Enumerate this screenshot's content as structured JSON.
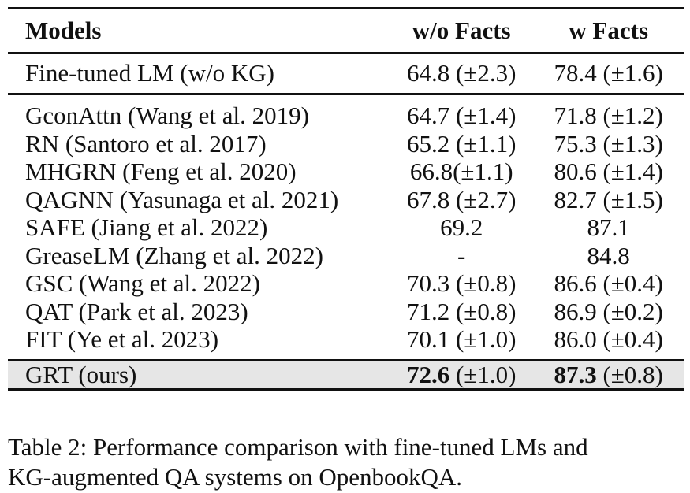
{
  "table": {
    "headers": {
      "models": "Models",
      "wo_facts": "w/o Facts",
      "w_facts": "w Facts"
    },
    "finetuned_row": {
      "model": "Fine-tuned LM (w/o KG)",
      "wo_facts": "64.8 (±2.3)",
      "w_facts": "78.4 (±1.6)"
    },
    "baseline_rows": [
      {
        "model": "GconAttn (Wang et al. 2019)",
        "wo_facts": "64.7 (±1.4)",
        "w_facts": "71.8 (±1.2)"
      },
      {
        "model": "RN (Santoro et al. 2017)",
        "wo_facts": "65.2 (±1.1)",
        "w_facts": "75.3 (±1.3)"
      },
      {
        "model": "MHGRN (Feng et al. 2020)",
        "wo_facts": "66.8(±1.1)",
        "w_facts": "80.6 (±1.4)"
      },
      {
        "model": "QAGNN (Yasunaga et al. 2021)",
        "wo_facts": "67.8 (±2.7)",
        "w_facts": "82.7 (±1.5)"
      },
      {
        "model": "SAFE (Jiang et al. 2022)",
        "wo_facts": "69.2",
        "w_facts": "87.1"
      },
      {
        "model": "GreaseLM (Zhang et al. 2022)",
        "wo_facts": "-",
        "w_facts": "84.8"
      },
      {
        "model": "GSC (Wang et al. 2022)",
        "wo_facts": "70.3 (±0.8)",
        "w_facts": "86.6 (±0.4)"
      },
      {
        "model": "QAT (Park et al. 2023)",
        "wo_facts": "71.2 (±0.8)",
        "w_facts": "86.9 (±0.2)"
      },
      {
        "model": "FIT (Ye et al. 2023)",
        "wo_facts": "70.1 (±1.0)",
        "w_facts": "86.0 (±0.4)"
      }
    ],
    "ours_row": {
      "model": "GRT (ours)",
      "wo_facts_bold": "72.6",
      "wo_facts_std": " (±1.0)",
      "w_facts_bold": "87.3",
      "w_facts_std": " (±0.8)"
    }
  },
  "caption": {
    "line1": "Table 2: Performance comparison with fine-tuned LMs and",
    "line2": "KG-augmented QA systems on OpenbookQA."
  }
}
